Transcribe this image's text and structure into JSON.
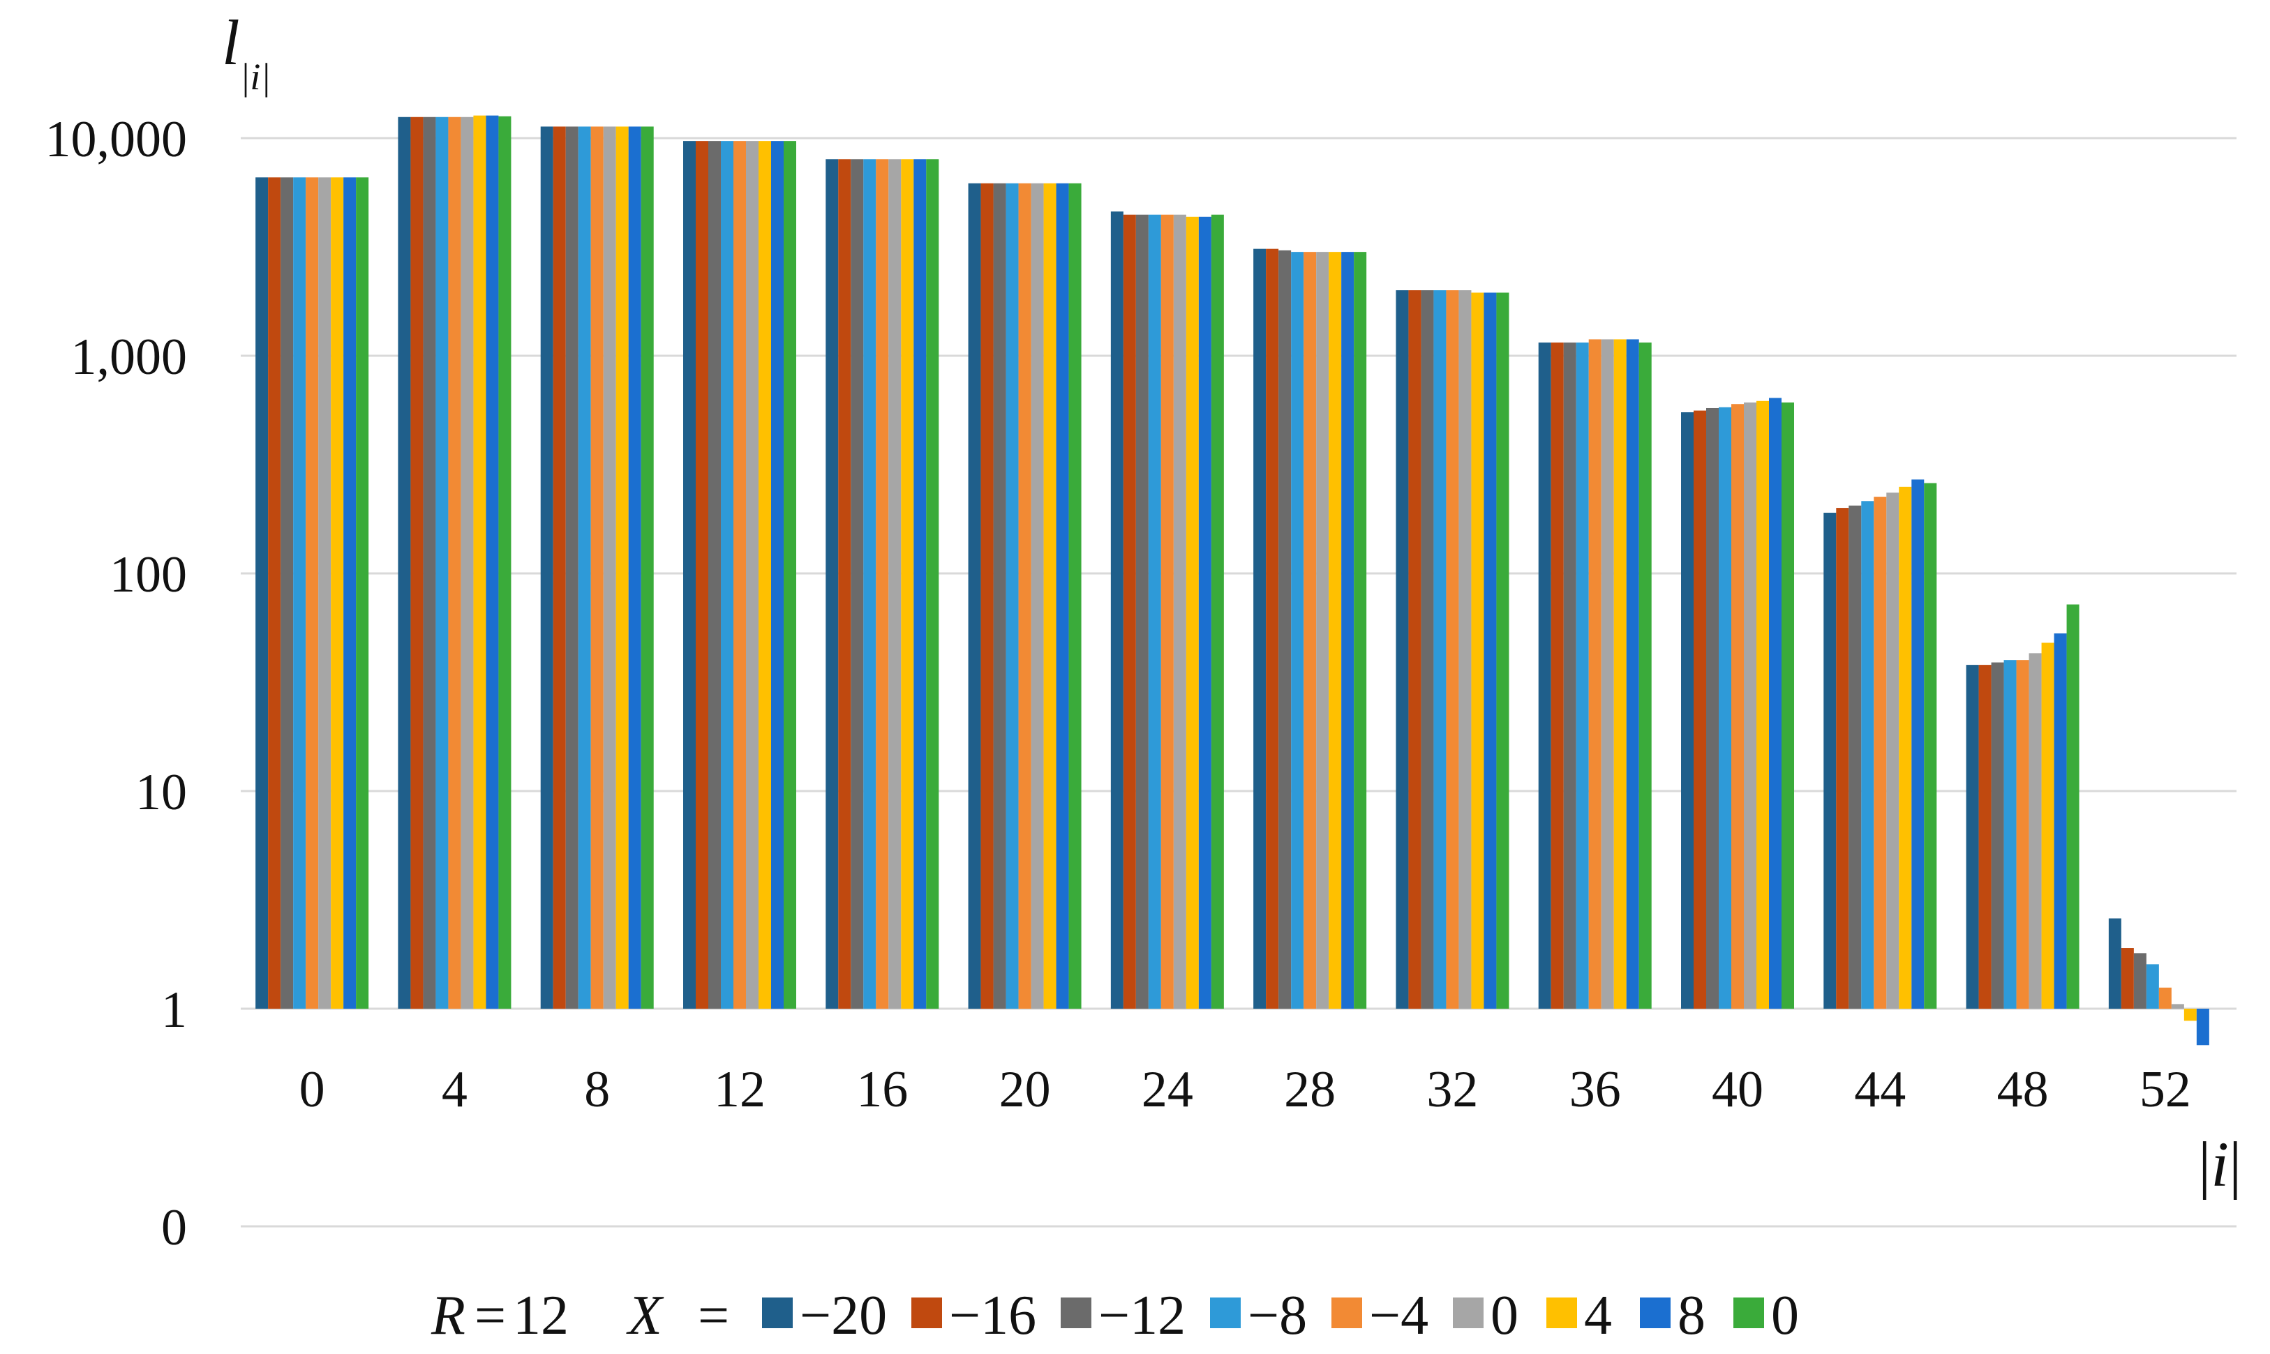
{
  "chart_data": {
    "type": "bar",
    "yscale": "log",
    "grid": true,
    "legend_position": "bottom",
    "ylabel": {
      "main": "l",
      "sub": "|i|"
    },
    "xlabel": {
      "pre": "|",
      "main": "i",
      "post": "|"
    },
    "yticks": [
      {
        "value": 10000,
        "label": "10,000"
      },
      {
        "value": 1000,
        "label": "1,000"
      },
      {
        "value": 100,
        "label": "100"
      },
      {
        "value": 10,
        "label": "10"
      },
      {
        "value": 1,
        "label": "1"
      },
      {
        "value": 0.1,
        "label": "0"
      }
    ],
    "categories": [
      "0",
      "4",
      "8",
      "12",
      "16",
      "20",
      "24",
      "28",
      "32",
      "36",
      "40",
      "44",
      "48",
      "52"
    ],
    "legend_prefix": {
      "r_symbol": "R",
      "r_eq": "=",
      "r_value": "12",
      "x_symbol": "X",
      "x_eq": "="
    },
    "series": [
      {
        "name": "−20",
        "color": "#1f5f8b",
        "values": [
          6600,
          12500,
          11300,
          9700,
          8000,
          6200,
          4600,
          3100,
          2000,
          1150,
          550,
          190,
          38,
          2.6
        ]
      },
      {
        "name": "−16",
        "color": "#c0490f",
        "values": [
          6600,
          12500,
          11300,
          9700,
          8000,
          6200,
          4450,
          3100,
          2000,
          1150,
          560,
          200,
          38,
          1.9
        ]
      },
      {
        "name": "−12",
        "color": "#6b6b6b",
        "values": [
          6600,
          12500,
          11300,
          9700,
          8000,
          6200,
          4450,
          3050,
          2000,
          1150,
          575,
          205,
          39,
          1.8
        ]
      },
      {
        "name": "−8",
        "color": "#2e9ad8",
        "values": [
          6600,
          12500,
          11300,
          9700,
          8000,
          6200,
          4450,
          3000,
          2000,
          1150,
          580,
          215,
          40,
          1.6
        ]
      },
      {
        "name": "−4",
        "color": "#f28a34",
        "values": [
          6600,
          12500,
          11300,
          9700,
          8000,
          6200,
          4450,
          3000,
          2000,
          1190,
          600,
          225,
          40,
          1.25
        ]
      },
      {
        "name": "0",
        "color": "#a6a6a6",
        "values": [
          6600,
          12500,
          11300,
          9700,
          8000,
          6200,
          4450,
          3000,
          2000,
          1190,
          610,
          235,
          43,
          1.05
        ]
      },
      {
        "name": "4",
        "color": "#ffc000",
        "values": [
          6600,
          12700,
          11300,
          9700,
          8000,
          6200,
          4350,
          3000,
          1950,
          1190,
          620,
          250,
          48,
          0.88
        ]
      },
      {
        "name": "8",
        "color": "#1b6fd0",
        "values": [
          6600,
          12700,
          11300,
          9700,
          8000,
          6200,
          4350,
          3000,
          1950,
          1190,
          640,
          270,
          53,
          0.68
        ]
      },
      {
        "name": "0",
        "color": "#3aab3a",
        "values": [
          6600,
          12600,
          11300,
          9700,
          8000,
          6200,
          4450,
          3000,
          1950,
          1150,
          610,
          260,
          72,
          null
        ]
      }
    ]
  }
}
